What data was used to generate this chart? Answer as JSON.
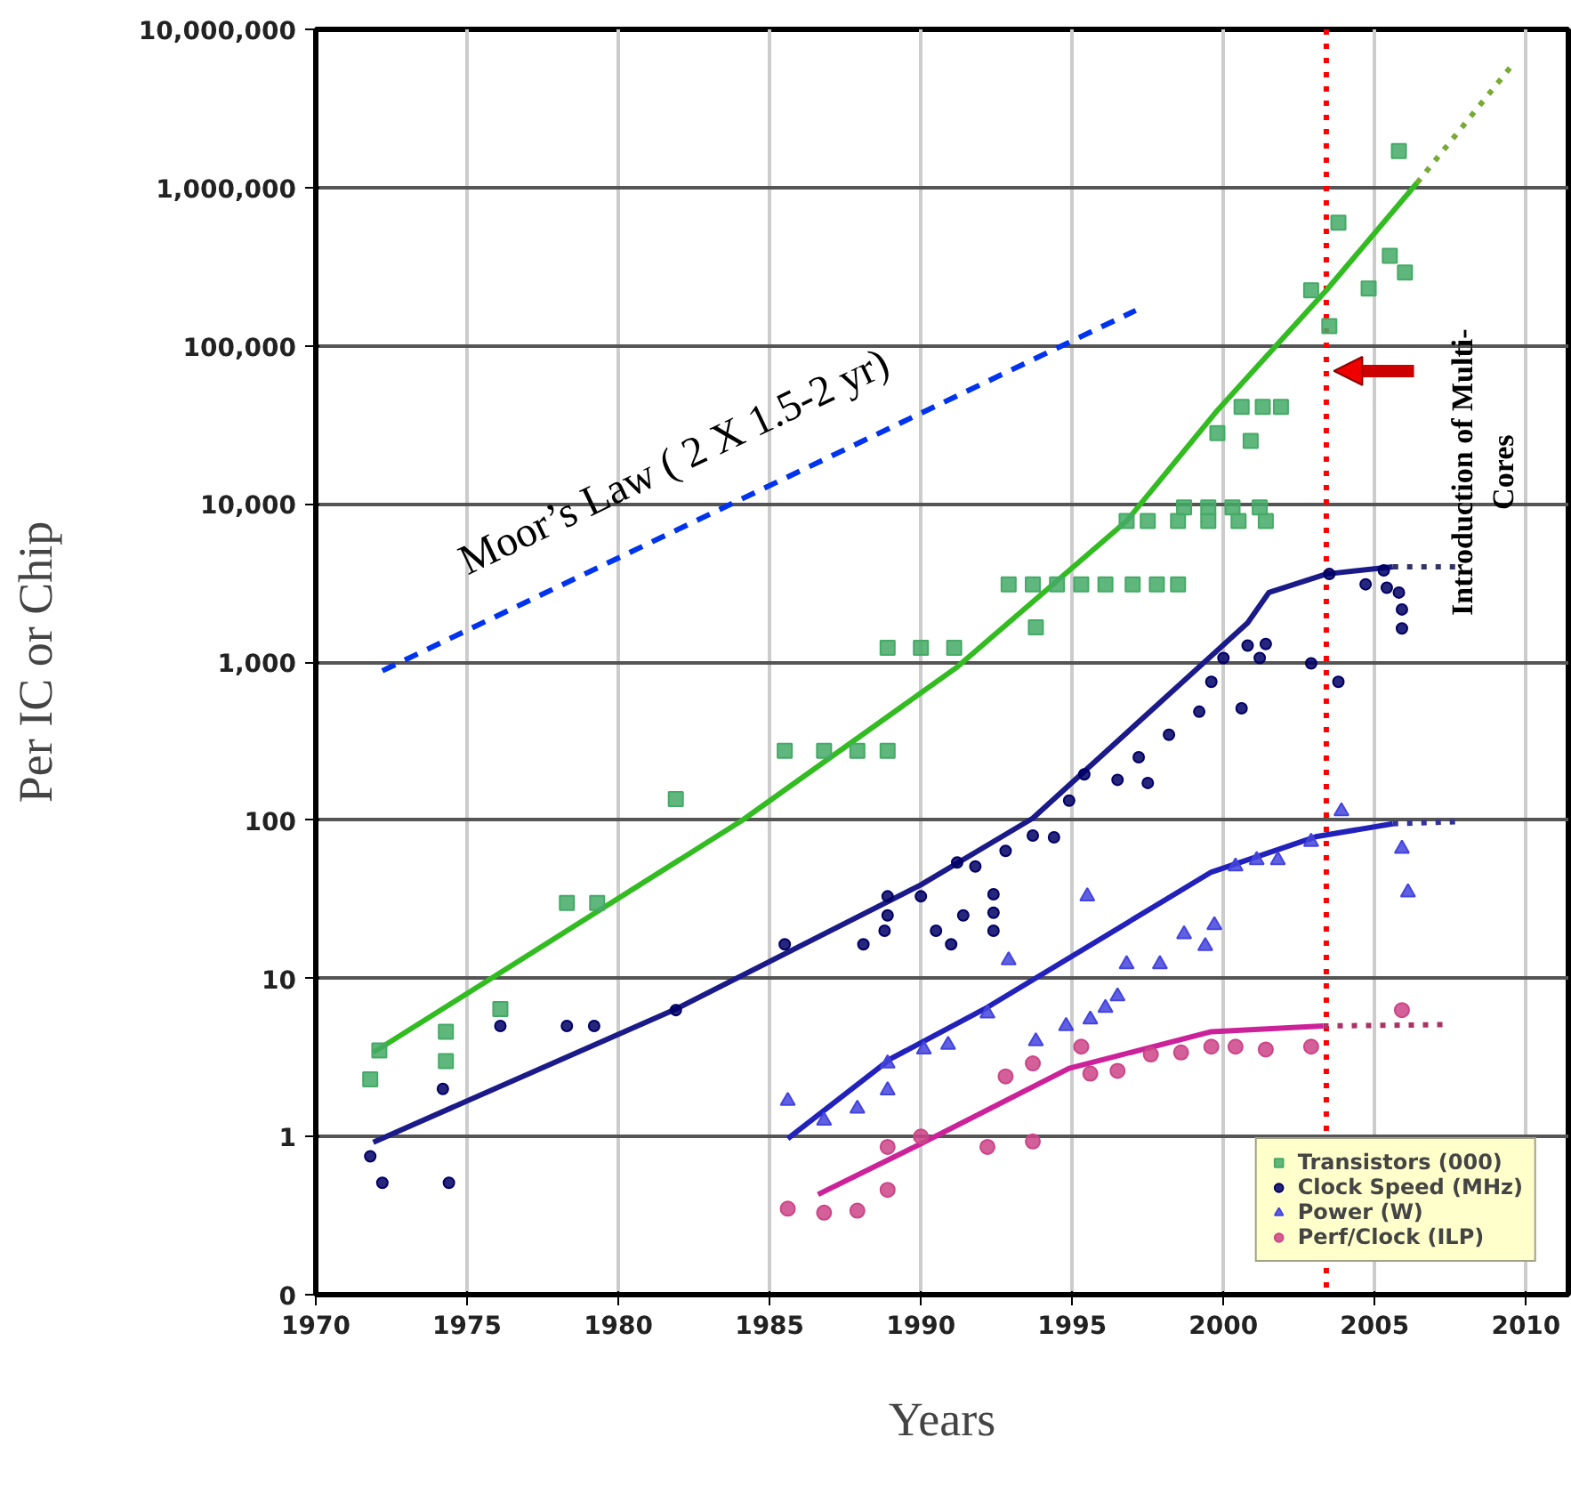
{
  "chart_data": {
    "type": "scatter",
    "xlabel": "Years",
    "ylabel": "Per IC or Chip",
    "xlim": [
      1970,
      2011.4
    ],
    "xticks": [
      1970,
      1975,
      1980,
      1985,
      1990,
      1995,
      2000,
      2005,
      2010
    ],
    "ylim": [
      0.1,
      10000000
    ],
    "yticks": [
      {
        "value": 0.1,
        "label": "0"
      },
      1,
      10,
      100,
      {
        "value": 1000,
        "label": "1,000"
      },
      {
        "value": 10000,
        "label": "10,000"
      },
      {
        "value": 100000,
        "label": "100,000"
      },
      {
        "value": 1000000,
        "label": "1,000,000"
      },
      {
        "value": 10000000,
        "label": "10,000,000"
      }
    ],
    "log": "y",
    "grid": true,
    "legend": "bottom right",
    "ref_lines": [
      {
        "axis": "x",
        "value": 2003.4,
        "label": "Introduction of Multi-\nCores",
        "color": "#ff0000",
        "line_style": "dotted"
      }
    ],
    "series": [
      {
        "name": "Transistors (000)",
        "marker": "square",
        "color": "#44aa66",
        "x": [
          1971.8,
          1972.1,
          1974.3,
          1974.3,
          1976.1,
          1978.3,
          1979.3,
          1981.9,
          1985.5,
          1986.8,
          1987.9,
          1988.9,
          1988.9,
          1990,
          1991.1,
          1992.9,
          1993.7,
          1993.8,
          1994.5,
          1995.3,
          1996.1,
          1997.0,
          1997.8,
          1998.5,
          1996.8,
          1997.5,
          1998.5,
          1999.5,
          2000.5,
          2001.4,
          1998.7,
          1999.5,
          2000.3,
          2001.2,
          1999.8,
          2000.9,
          2000.6,
          2001.3,
          2001.9,
          2002.9,
          2003.5,
          2003.8,
          2004.8,
          2005.5,
          2006,
          2005.8
        ],
        "values": [
          2.3,
          3.5,
          4.6,
          3.0,
          6.4,
          30,
          30,
          136,
          275,
          275,
          275,
          275,
          1230,
          1230,
          1230,
          3100,
          3100,
          1660,
          3100,
          3100,
          3100,
          3100,
          3100,
          3100,
          7800,
          7800,
          7800,
          7800,
          7800,
          7800,
          9500,
          9500,
          9500,
          9500,
          28000,
          25000,
          41000,
          41000,
          41000,
          224000,
          133000,
          600000,
          230000,
          370000,
          290000,
          1700000
        ]
      },
      {
        "name": "Clock Speed (MHz)",
        "marker": "circle",
        "color": "#000066",
        "x": [
          1971.8,
          1972.2,
          1974.2,
          1974.4,
          1976.1,
          1978.3,
          1979.2,
          1981.9,
          1985.5,
          1988.1,
          1988.8,
          1988.9,
          1988.9,
          1990,
          1990.5,
          1991,
          1991.4,
          1992.4,
          1992.4,
          1992.4,
          1991.8,
          1991.2,
          1992.8,
          1993.7,
          1994.4,
          1994.9,
          1995.4,
          1996.5,
          1997.5,
          1997.2,
          1998.2,
          1999.2,
          1999.6,
          2000.6,
          2000.8,
          2001.2,
          2000,
          2001.4,
          2002.9,
          2003.8,
          2003.5,
          2004.7,
          2005.4,
          2005.8,
          2005.9,
          2005.9,
          2005.3
        ],
        "values": [
          0.75,
          0.51,
          2.0,
          0.51,
          5.0,
          5.0,
          5.0,
          6.3,
          16.4,
          16.4,
          20,
          25,
          33,
          33,
          20,
          16.4,
          25,
          34,
          26,
          20,
          51,
          54,
          64,
          80,
          78,
          133,
          195,
          180,
          172,
          250,
          347,
          485,
          750,
          510,
          1270,
          1060,
          1060,
          1300,
          980,
          750,
          3600,
          3100,
          2950,
          2750,
          2150,
          1630,
          3800
        ]
      },
      {
        "name": "Power (W)",
        "marker": "triangle",
        "color": "#4444dd",
        "x": [
          1985.6,
          1986.8,
          1987.9,
          1988.9,
          1988.9,
          1990.1,
          1990.9,
          1992.2,
          1992.9,
          1993.8,
          1994.8,
          1995.5,
          1995.6,
          1996.1,
          1996.5,
          1996.8,
          1997.9,
          1998.7,
          1999.4,
          1999.7,
          2000.4,
          2001.1,
          2001.8,
          2002.9,
          2003.9,
          2005.9,
          2006.1
        ],
        "values": [
          1.68,
          1.26,
          1.5,
          1.96,
          2.9,
          3.55,
          3.8,
          6,
          13,
          4,
          5,
          33,
          5.5,
          6.5,
          7.7,
          12.3,
          12.3,
          19,
          16,
          21.7,
          51,
          56,
          56,
          73,
          114,
          66,
          35
        ]
      },
      {
        "name": "Perf/Clock (ILP)",
        "marker": "circle",
        "color": "#cc4488",
        "x": [
          1985.6,
          1986.8,
          1987.9,
          1988.9,
          1988.9,
          1990,
          1992.2,
          1993.7,
          1992.8,
          1993.7,
          1995.3,
          1995.6,
          1996.5,
          1997.6,
          1998.6,
          1999.6,
          2000.4,
          2001.4,
          2002.9,
          2005.9
        ],
        "values": [
          0.35,
          0.33,
          0.34,
          0.46,
          0.86,
          1.0,
          0.86,
          0.93,
          2.4,
          2.9,
          3.7,
          2.5,
          2.6,
          3.3,
          3.4,
          3.7,
          3.7,
          3.55,
          3.7,
          6.3
        ]
      },
      {
        "type": "line",
        "marker": "none",
        "line_style": "solid",
        "color": "#33bb22",
        "x": [
          1971.9,
          1975.8,
          1984.1,
          1991.2,
          1996.8,
          1999.8,
          2003.4,
          2006.4
        ],
        "values": [
          3.4,
          10,
          100,
          930,
          7800,
          39000,
          224000,
          1070000
        ]
      },
      {
        "type": "line",
        "marker": "none",
        "line_style": "dotted",
        "color": "#77aa33",
        "x": [
          2006.4,
          2009.5
        ],
        "values": [
          1070000,
          5800000
        ]
      },
      {
        "type": "line",
        "marker": "none",
        "line_style": "solid",
        "color": "#1a1a88",
        "x": [
          1971.9,
          1981.9,
          1990,
          1993.7,
          2000.8,
          2001.5,
          2003.4,
          2005.6
        ],
        "values": [
          0.92,
          6.4,
          39,
          103,
          1770,
          2750,
          3600,
          4000
        ]
      },
      {
        "type": "line",
        "marker": "none",
        "line_style": "dotted",
        "color": "#333366",
        "x": [
          2005.6,
          2007.9
        ],
        "values": [
          4000,
          4000
        ]
      },
      {
        "type": "line",
        "marker": "none",
        "line_style": "solid",
        "color": "#2222bb",
        "x": [
          1985.6,
          1989,
          1992.1,
          1999.6,
          2003.1,
          2005.6
        ],
        "values": [
          0.97,
          3.1,
          6.4,
          47,
          79,
          95
        ]
      },
      {
        "type": "line",
        "marker": "none",
        "line_style": "dotted",
        "color": "#333399",
        "x": [
          2005.6,
          2007.8
        ],
        "values": [
          95,
          98
        ]
      },
      {
        "type": "line",
        "marker": "none",
        "line_style": "solid",
        "color": "#cc2299",
        "x": [
          1986.6,
          1990,
          1994.9,
          1999.6,
          2003.3
        ],
        "values": [
          0.43,
          0.9,
          2.7,
          4.6,
          5.0
        ]
      },
      {
        "type": "line",
        "marker": "none",
        "line_style": "dotted",
        "color": "#aa3366",
        "x": [
          2003.3,
          2007.4
        ],
        "values": [
          5.0,
          5.1
        ]
      },
      {
        "name": "Moor’s Law ( 2 X 1.5-2 yr)",
        "type": "line",
        "marker": "none",
        "line_style": "dashed",
        "color": "#0033ee",
        "x": [
          1972.2,
          1997.1
        ],
        "values": [
          880,
          167000
        ]
      }
    ]
  }
}
